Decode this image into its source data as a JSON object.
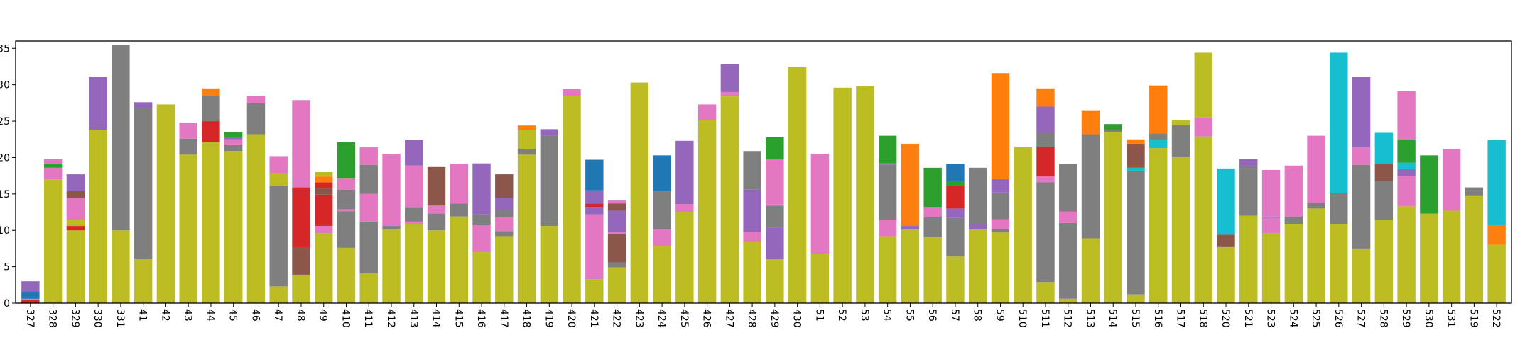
{
  "chart_data": {
    "type": "bar",
    "stacked": true,
    "title": "",
    "xlabel": "",
    "ylabel": "",
    "ylim": [
      0,
      36
    ],
    "yticks": [
      0,
      5,
      10,
      15,
      20,
      25,
      30,
      35
    ],
    "ytick_labels": [
      "0",
      "5",
      "10",
      "15",
      "20",
      "25",
      "30",
      "35"
    ],
    "grid": false,
    "legend": "none",
    "categories": [
      "327",
      "328",
      "329",
      "330",
      "331",
      "41",
      "42",
      "43",
      "44",
      "45",
      "46",
      "47",
      "48",
      "49",
      "410",
      "411",
      "412",
      "413",
      "414",
      "415",
      "416",
      "417",
      "418",
      "419",
      "420",
      "421",
      "422",
      "423",
      "424",
      "425",
      "426",
      "427",
      "428",
      "429",
      "430",
      "51",
      "52",
      "53",
      "54",
      "55",
      "56",
      "57",
      "58",
      "59",
      "510",
      "511",
      "512",
      "513",
      "514",
      "515",
      "516",
      "517",
      "518",
      "520",
      "521",
      "523",
      "524",
      "525",
      "526",
      "527",
      "528",
      "529",
      "530",
      "531",
      "519",
      "522"
    ],
    "colors": {
      "olive": "#bcbd22",
      "gray": "#7f7f7f",
      "pink": "#e377c2",
      "purple": "#9467bd",
      "brown": "#8c564b",
      "red": "#d62728",
      "green": "#2ca02c",
      "orange": "#ff7f0e",
      "blue": "#1f77b4",
      "cyan": "#17becf"
    },
    "bars": [
      [
        [
          "red",
          0.5
        ],
        [
          "orange",
          0.1
        ],
        [
          "blue",
          1.0
        ],
        [
          "purple",
          1.4
        ]
      ],
      [
        [
          "olive",
          17.0
        ],
        [
          "pink",
          1.6
        ],
        [
          "green",
          0.6
        ],
        [
          "pink",
          0.6
        ]
      ],
      [
        [
          "olive",
          10.0
        ],
        [
          "red",
          0.6
        ],
        [
          "olive",
          0.8
        ],
        [
          "pink",
          3.0
        ],
        [
          "brown",
          1.0
        ],
        [
          "purple",
          2.3
        ]
      ],
      [
        [
          "olive",
          23.8
        ],
        [
          "purple",
          7.3
        ]
      ],
      [
        [
          "olive",
          10.0
        ],
        [
          "gray",
          25.5
        ]
      ],
      [
        [
          "olive",
          6.1
        ],
        [
          "gray",
          20.7
        ],
        [
          "purple",
          0.8
        ]
      ],
      [
        [
          "olive",
          27.3
        ]
      ],
      [
        [
          "olive",
          20.4
        ],
        [
          "gray",
          2.2
        ],
        [
          "pink",
          2.2
        ]
      ],
      [
        [
          "olive",
          22.1
        ],
        [
          "red",
          2.9
        ],
        [
          "gray",
          3.5
        ],
        [
          "orange",
          1.0
        ]
      ],
      [
        [
          "olive",
          20.9
        ],
        [
          "gray",
          0.9
        ],
        [
          "pink",
          0.7
        ],
        [
          "purple",
          0.3
        ],
        [
          "green",
          0.7
        ]
      ],
      [
        [
          "olive",
          23.2
        ],
        [
          "gray",
          4.3
        ],
        [
          "pink",
          1.0
        ]
      ],
      [
        [
          "olive",
          2.3
        ],
        [
          "gray",
          13.8
        ],
        [
          "olive",
          1.8
        ],
        [
          "pink",
          2.3
        ]
      ],
      [
        [
          "olive",
          3.9
        ],
        [
          "brown",
          3.7
        ],
        [
          "red",
          8.3
        ],
        [
          "pink",
          12.0
        ]
      ],
      [
        [
          "olive",
          9.6
        ],
        [
          "pink",
          1.0
        ],
        [
          "red",
          4.3
        ],
        [
          "brown",
          0.9
        ],
        [
          "red",
          0.8
        ],
        [
          "orange",
          0.8
        ],
        [
          "olive",
          0.6
        ]
      ],
      [
        [
          "olive",
          7.6
        ],
        [
          "gray",
          5.0
        ],
        [
          "pink",
          0.3
        ],
        [
          "gray",
          2.7
        ],
        [
          "pink",
          1.6
        ],
        [
          "green",
          4.9
        ]
      ],
      [
        [
          "olive",
          4.1
        ],
        [
          "gray",
          7.1
        ],
        [
          "pink",
          3.8
        ],
        [
          "gray",
          4.0
        ],
        [
          "pink",
          2.4
        ]
      ],
      [
        [
          "olive",
          10.2
        ],
        [
          "gray",
          0.4
        ],
        [
          "pink",
          9.9
        ]
      ],
      [
        [
          "olive",
          10.9
        ],
        [
          "pink",
          0.3
        ],
        [
          "gray",
          2.0
        ],
        [
          "pink",
          5.7
        ],
        [
          "purple",
          3.5
        ]
      ],
      [
        [
          "olive",
          10.0
        ],
        [
          "gray",
          2.3
        ],
        [
          "pink",
          1.1
        ],
        [
          "brown",
          5.3
        ]
      ],
      [
        [
          "olive",
          11.9
        ],
        [
          "gray",
          1.8
        ],
        [
          "pink",
          5.4
        ]
      ],
      [
        [
          "olive",
          7.0
        ],
        [
          "pink",
          3.8
        ],
        [
          "gray",
          1.4
        ],
        [
          "purple",
          7.0
        ]
      ],
      [
        [
          "olive",
          9.2
        ],
        [
          "gray",
          0.7
        ],
        [
          "pink",
          1.9
        ],
        [
          "gray",
          1.0
        ],
        [
          "purple",
          1.6
        ],
        [
          "brown",
          3.3
        ]
      ],
      [
        [
          "olive",
          20.4
        ],
        [
          "gray",
          0.8
        ],
        [
          "olive",
          2.6
        ],
        [
          "orange",
          0.6
        ]
      ],
      [
        [
          "olive",
          10.6
        ],
        [
          "gray",
          12.4
        ],
        [
          "purple",
          0.9
        ]
      ],
      [
        [
          "olive",
          28.5
        ],
        [
          "pink",
          0.9
        ]
      ],
      [
        [
          "olive",
          3.3
        ],
        [
          "pink",
          8.9
        ],
        [
          "purple",
          1.0
        ],
        [
          "red",
          0.5
        ],
        [
          "purple",
          1.8
        ],
        [
          "blue",
          4.2
        ]
      ],
      [
        [
          "olive",
          4.9
        ],
        [
          "gray",
          0.7
        ],
        [
          "brown",
          3.9
        ],
        [
          "pink",
          0.2
        ],
        [
          "purple",
          3.0
        ],
        [
          "brown",
          1.0
        ],
        [
          "pink",
          0.4
        ]
      ],
      [
        [
          "olive",
          30.3
        ]
      ],
      [
        [
          "olive",
          7.8
        ],
        [
          "pink",
          2.4
        ],
        [
          "gray",
          5.2
        ],
        [
          "blue",
          4.9
        ]
      ],
      [
        [
          "olive",
          12.5
        ],
        [
          "pink",
          1.1
        ],
        [
          "purple",
          8.7
        ]
      ],
      [
        [
          "olive",
          25.1
        ],
        [
          "pink",
          2.2
        ]
      ],
      [
        [
          "olive",
          28.4
        ],
        [
          "pink",
          0.6
        ],
        [
          "purple",
          3.8
        ]
      ],
      [
        [
          "olive",
          8.4
        ],
        [
          "pink",
          1.4
        ],
        [
          "purple",
          5.8
        ],
        [
          "gray",
          5.3
        ]
      ],
      [
        [
          "olive",
          6.1
        ],
        [
          "purple",
          4.3
        ],
        [
          "gray",
          3.0
        ],
        [
          "pink",
          0.2
        ],
        [
          "pink",
          6.2
        ],
        [
          "green",
          3.0
        ]
      ],
      [
        [
          "olive",
          32.5
        ]
      ],
      [
        [
          "olive",
          6.8
        ],
        [
          "pink",
          13.7
        ]
      ],
      [
        [
          "olive",
          29.6
        ]
      ],
      [
        [
          "olive",
          29.8
        ]
      ],
      [
        [
          "olive",
          9.2
        ],
        [
          "pink",
          2.2
        ],
        [
          "gray",
          7.6
        ],
        [
          "purple",
          0.2
        ],
        [
          "green",
          3.8
        ]
      ],
      [
        [
          "olive",
          10.1
        ],
        [
          "purple",
          0.5
        ],
        [
          "orange",
          11.3
        ]
      ],
      [
        [
          "olive",
          9.1
        ],
        [
          "gray",
          2.7
        ],
        [
          "pink",
          1.4
        ],
        [
          "green",
          5.4
        ]
      ],
      [
        [
          "olive",
          6.4
        ],
        [
          "gray",
          5.3
        ],
        [
          "purple",
          1.3
        ],
        [
          "red",
          3.1
        ],
        [
          "green",
          0.7
        ],
        [
          "blue",
          2.3
        ]
      ],
      [
        [
          "olive",
          10.1
        ],
        [
          "purple",
          0.8
        ],
        [
          "gray",
          7.7
        ]
      ],
      [
        [
          "olive",
          9.7
        ],
        [
          "gray",
          0.5
        ],
        [
          "pink",
          1.3
        ],
        [
          "gray",
          3.7
        ],
        [
          "purple",
          1.9
        ],
        [
          "orange",
          14.5
        ]
      ],
      [
        [
          "olive",
          21.5
        ]
      ],
      [
        [
          "olive",
          2.9
        ],
        [
          "gray",
          13.7
        ],
        [
          "pink",
          0.8
        ],
        [
          "red",
          4.1
        ],
        [
          "gray",
          1.9
        ],
        [
          "purple",
          3.6
        ],
        [
          "orange",
          2.5
        ]
      ],
      [
        [
          "olive",
          0.6
        ],
        [
          "gray",
          10.4
        ],
        [
          "pink",
          1.6
        ],
        [
          "gray",
          6.5
        ]
      ],
      [
        [
          "olive",
          8.9
        ],
        [
          "gray",
          14.3
        ],
        [
          "orange",
          3.3
        ]
      ],
      [
        [
          "olive",
          23.5
        ],
        [
          "gray",
          0.3
        ],
        [
          "green",
          0.8
        ]
      ],
      [
        [
          "olive",
          1.2
        ],
        [
          "gray",
          17.0
        ],
        [
          "cyan",
          0.4
        ],
        [
          "brown",
          3.3
        ],
        [
          "orange",
          0.6
        ]
      ],
      [
        [
          "olive",
          21.3
        ],
        [
          "cyan",
          1.1
        ],
        [
          "gray",
          0.9
        ],
        [
          "orange",
          6.6
        ]
      ],
      [
        [
          "olive",
          20.1
        ],
        [
          "gray",
          4.4
        ],
        [
          "olive",
          0.6
        ]
      ],
      [
        [
          "olive",
          22.9
        ],
        [
          "pink",
          2.6
        ],
        [
          "olive",
          8.9
        ]
      ],
      [
        [
          "olive",
          7.7
        ],
        [
          "brown",
          1.7
        ],
        [
          "cyan",
          9.1
        ]
      ],
      [
        [
          "olive",
          12.0
        ],
        [
          "gray",
          6.8
        ],
        [
          "purple",
          1.0
        ]
      ],
      [
        [
          "olive",
          9.6
        ],
        [
          "pink",
          2.1
        ],
        [
          "purple",
          0.2
        ],
        [
          "pink",
          6.4
        ]
      ],
      [
        [
          "olive",
          10.9
        ],
        [
          "gray",
          1.0
        ],
        [
          "pink",
          7.0
        ]
      ],
      [
        [
          "olive",
          13.0
        ],
        [
          "gray",
          0.8
        ],
        [
          "pink",
          9.2
        ]
      ],
      [
        [
          "olive",
          10.9
        ],
        [
          "gray",
          4.2
        ],
        [
          "cyan",
          19.3
        ]
      ],
      [
        [
          "olive",
          7.5
        ],
        [
          "gray",
          11.5
        ],
        [
          "pink",
          2.4
        ],
        [
          "purple",
          9.7
        ]
      ],
      [
        [
          "olive",
          11.4
        ],
        [
          "gray",
          5.4
        ],
        [
          "brown",
          2.3
        ],
        [
          "cyan",
          4.3
        ]
      ],
      [
        [
          "olive",
          13.3
        ],
        [
          "pink",
          4.2
        ],
        [
          "purple",
          0.9
        ],
        [
          "cyan",
          0.9
        ],
        [
          "green",
          3.1
        ],
        [
          "pink",
          6.7
        ]
      ],
      [
        [
          "olive",
          12.3
        ],
        [
          "green",
          8.0
        ]
      ],
      [
        [
          "olive",
          12.7
        ],
        [
          "pink",
          8.5
        ]
      ],
      [
        [
          "olive",
          14.8
        ],
        [
          "gray",
          1.1
        ]
      ],
      [
        [
          "olive",
          8.0
        ],
        [
          "orange",
          2.8
        ],
        [
          "cyan",
          11.6
        ]
      ]
    ]
  }
}
